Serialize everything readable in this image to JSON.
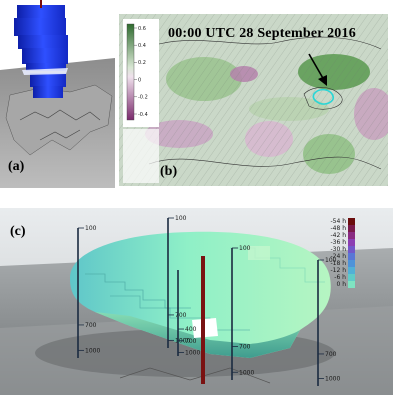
{
  "panels": {
    "a": {
      "label": "(a)"
    },
    "b": {
      "label": "(b)",
      "title": "00:00 UTC 28 September 2016",
      "colorbar": {
        "ticks": [
          "0.6",
          "0.4",
          "0.2",
          "0",
          "-0.2",
          "-0.4"
        ]
      }
    },
    "c": {
      "label": "(c)",
      "legend": {
        "ticks": [
          "-54 h",
          "-48 h",
          "-42 h",
          "-36 h",
          "-30 h",
          "-24 h",
          "-18 h",
          "-12 h",
          "-6 h",
          "0 h"
        ],
        "colors": [
          "#6b0d0d",
          "#7a1a4a",
          "#8a2b82",
          "#8c3fb3",
          "#7358c9",
          "#5a77d6",
          "#4e93d9",
          "#52b0d6",
          "#5fcbc8",
          "#7fe3c2"
        ]
      },
      "poles": [
        {
          "top": "100",
          "ticks": [
            "700",
            "1000"
          ]
        },
        {
          "top": "100",
          "ticks": [
            "700",
            "1000"
          ]
        },
        {
          "top": "100",
          "ticks": [
            "700",
            "1000"
          ]
        },
        {
          "top": "100",
          "ticks": [
            "700",
            "1000"
          ]
        },
        {
          "top": "",
          "ticks": [
            "400",
            "700",
            "1000"
          ]
        }
      ]
    }
  },
  "colors": {
    "blob_main": "#8fe3b8",
    "blob_shadow": "#4aa8a0",
    "panel_a_volume": "#1e3fe0",
    "panel_b_green": "#3f8a3a",
    "panel_b_purple": "#9a4a8a",
    "panel_b_cyan": "#3fd6d6"
  }
}
